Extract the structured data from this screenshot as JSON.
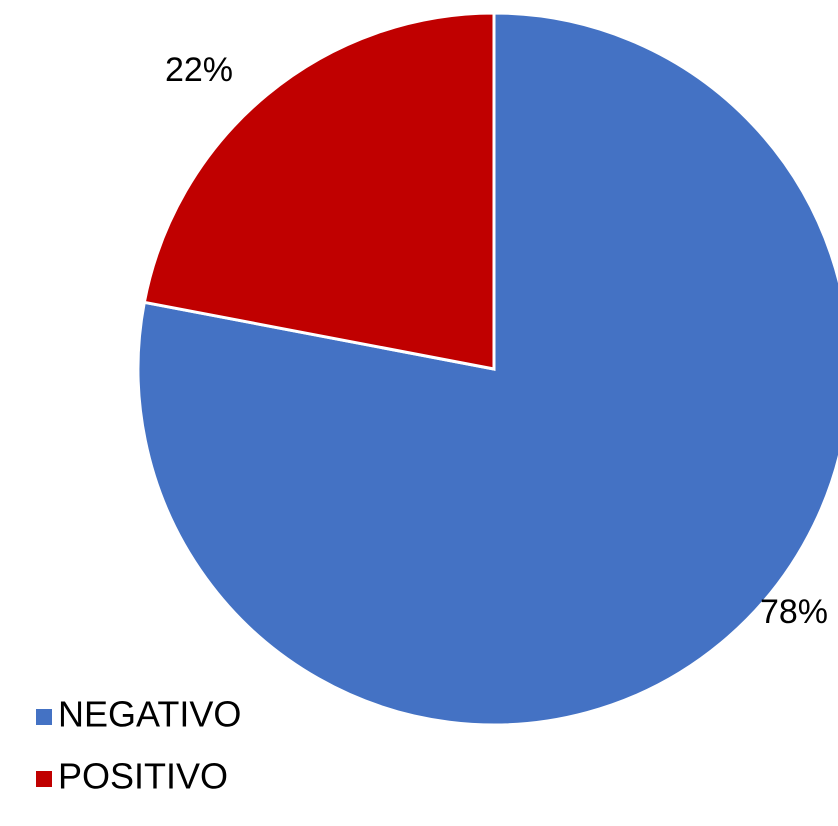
{
  "chart_data": {
    "type": "pie",
    "title": "",
    "slices": [
      {
        "name": "NEGATIVO",
        "value": 78,
        "label": "78%",
        "color": "#4472C4"
      },
      {
        "name": "POSITIVO",
        "value": 22,
        "label": "22%",
        "color": "#C00000"
      }
    ],
    "legend": {
      "position": "bottom-left",
      "entries": [
        "NEGATIVO",
        "POSITIVO"
      ]
    },
    "start": "12 o'clock",
    "direction": "clockwise"
  }
}
